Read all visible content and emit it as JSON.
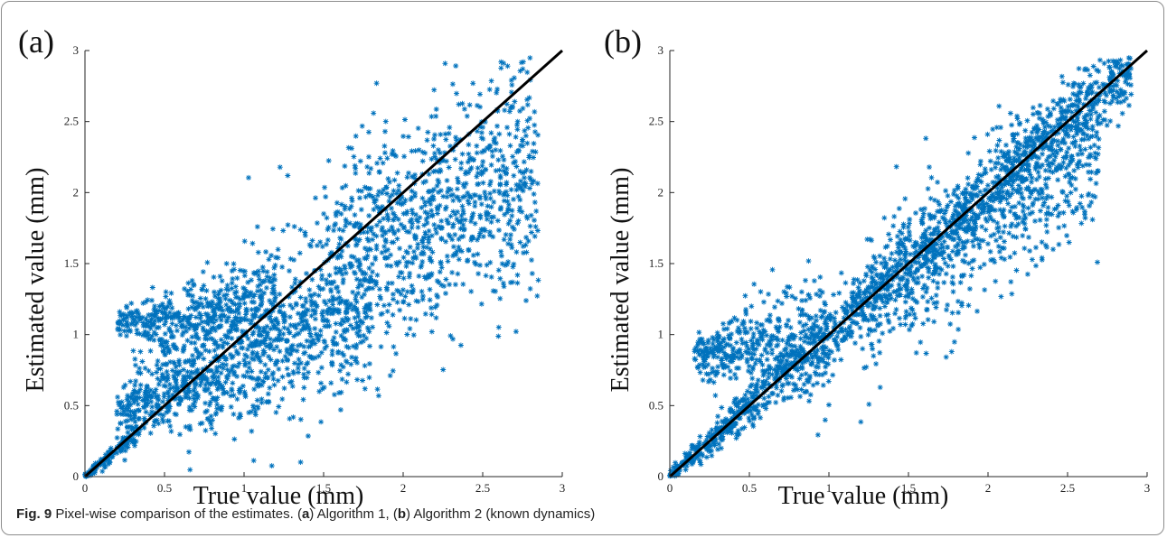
{
  "chart_data": [
    {
      "type": "scatter",
      "panel_label": "(a)",
      "xlabel": "True value (mm)",
      "ylabel": "Estimated value (mm)",
      "xlim": [
        0,
        3
      ],
      "ylim": [
        0,
        3
      ],
      "xticks": [
        "0",
        "0.5",
        "1",
        "1.5",
        "2",
        "2.5",
        "3"
      ],
      "yticks": [
        "0",
        "0.5",
        "1",
        "1.5",
        "2",
        "2.5",
        "3"
      ],
      "marker_color": "#0072bd",
      "marker": "asterisk",
      "reference_line": {
        "x": [
          0,
          3
        ],
        "y": [
          0,
          3
        ],
        "color": "#000000"
      },
      "clusters": [
        {
          "x_range": [
            0.0,
            0.35
          ],
          "y_center": "0.95x",
          "spread": 0.06
        },
        {
          "x_range": [
            0.2,
            1.2
          ],
          "y_center": "1.05 + 0.15x",
          "spread": 0.12
        },
        {
          "x_range": [
            0.3,
            2.85
          ],
          "y_center": "0.45 + 0.55x",
          "spread": 0.28
        },
        {
          "x_range": [
            0.2,
            1.8
          ],
          "y_center": "0.35 + 0.45x",
          "spread": 0.15
        },
        {
          "x_range": [
            1.5,
            2.85
          ],
          "y_center": "0.55 + 0.65x",
          "spread": 0.3
        }
      ],
      "point_count": 2600
    },
    {
      "type": "scatter",
      "panel_label": "(b)",
      "xlabel": "True value (mm)",
      "ylabel": "Estimated value (mm)",
      "xlim": [
        0,
        3
      ],
      "ylim": [
        0,
        3
      ],
      "xticks": [
        "0",
        "0.5",
        "1",
        "1.5",
        "2",
        "2.5",
        "3"
      ],
      "yticks": [
        "0",
        "0.5",
        "1",
        "1.5",
        "2",
        "2.5",
        "3"
      ],
      "marker_color": "#0072bd",
      "marker": "asterisk",
      "reference_line": {
        "x": [
          0,
          3
        ],
        "y": [
          0,
          3
        ],
        "color": "#000000"
      },
      "clusters": [
        {
          "x_range": [
            0.0,
            2.9
          ],
          "y_center": "1.0x",
          "spread": 0.1
        },
        {
          "x_range": [
            0.15,
            1.0
          ],
          "y_center": "0.8 + 0.25x",
          "spread": 0.2
        },
        {
          "x_range": [
            1.2,
            2.7
          ],
          "y_center": "0.3 + 0.75x",
          "spread": 0.22
        }
      ],
      "point_count": 2600
    }
  ],
  "caption": {
    "fig_label": "Fig. 9",
    "text_1": " Pixel-wise comparison of the estimates. (",
    "a": "a",
    "text_2": ") Algorithm 1, (",
    "b": "b",
    "text_3": ") Algorithm 2  (known dynamics)"
  }
}
